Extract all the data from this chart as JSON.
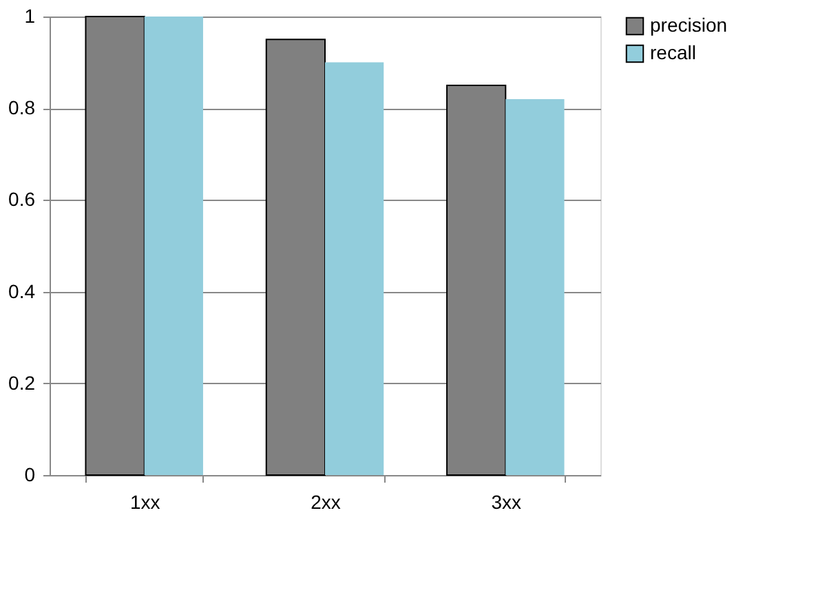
{
  "chart_data": {
    "type": "bar",
    "categories": [
      "1xx",
      "2xx",
      "3xx"
    ],
    "series": [
      {
        "name": "precision",
        "color": "#808080",
        "values": [
          1,
          0.95,
          0.85
        ]
      },
      {
        "name": "recall",
        "color": "#92cddc",
        "values": [
          1,
          0.9,
          0.82
        ]
      }
    ],
    "ylim": [
      0,
      1
    ],
    "yticks": [
      0,
      0.2,
      0.4,
      0.6,
      0.8,
      1
    ],
    "grid": "y",
    "legend": "right"
  }
}
